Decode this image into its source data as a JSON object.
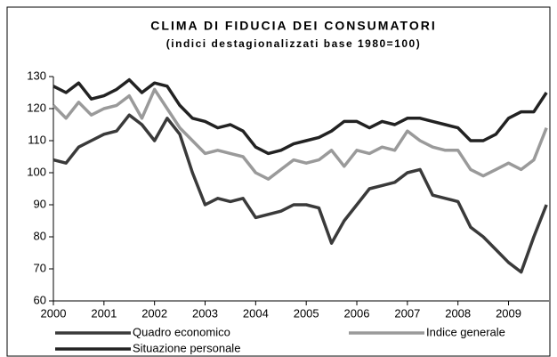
{
  "chart_data": {
    "type": "line",
    "title": "CLIMA DI FIDUCIA DEI CONSUMATORI",
    "subtitle": "(indici destagionalizzati base 1980=100)",
    "x": [
      2000,
      2000.25,
      2000.5,
      2000.75,
      2001,
      2001.25,
      2001.5,
      2001.75,
      2002,
      2002.25,
      2002.5,
      2002.75,
      2003,
      2003.25,
      2003.5,
      2003.75,
      2004,
      2004.25,
      2004.5,
      2004.75,
      2005,
      2005.25,
      2005.5,
      2005.75,
      2006,
      2006.25,
      2006.5,
      2006.75,
      2007,
      2007.25,
      2007.5,
      2007.75,
      2008,
      2008.25,
      2008.5,
      2008.75,
      2009,
      2009.25,
      2009.5,
      2009.75
    ],
    "series": [
      {
        "name": "Quadro economico",
        "color": "#3a3a3a",
        "values": [
          104,
          103,
          108,
          110,
          112,
          113,
          118,
          115,
          110,
          117,
          112,
          100,
          90,
          92,
          91,
          92,
          86,
          87,
          88,
          90,
          90,
          89,
          78,
          85,
          90,
          95,
          96,
          97,
          100,
          101,
          93,
          92,
          91,
          83,
          80,
          76,
          72,
          69,
          80,
          90
        ]
      },
      {
        "name": "Indice generale",
        "color": "#9a9a9a",
        "values": [
          121,
          117,
          122,
          118,
          120,
          121,
          124,
          117,
          126,
          120,
          114,
          110,
          106,
          107,
          106,
          105,
          100,
          98,
          101,
          104,
          103,
          104,
          107,
          102,
          107,
          106,
          108,
          107,
          113,
          110,
          108,
          107,
          107,
          101,
          99,
          101,
          103,
          101,
          104,
          114
        ]
      },
      {
        "name": "Situazione personale",
        "color": "#222222",
        "values": [
          127,
          125,
          128,
          123,
          124,
          126,
          129,
          125,
          128,
          127,
          121,
          117,
          116,
          114,
          115,
          113,
          108,
          106,
          107,
          109,
          110,
          111,
          113,
          116,
          116,
          114,
          116,
          115,
          117,
          117,
          116,
          115,
          114,
          110,
          110,
          112,
          117,
          119,
          119,
          125
        ]
      }
    ],
    "xlim": [
      2000,
      2009.8
    ],
    "xticks": [
      {
        "value": 2000,
        "label": "2000"
      },
      {
        "value": 2001,
        "label": "2001"
      },
      {
        "value": 2002,
        "label": "2002"
      },
      {
        "value": 2003,
        "label": "2003"
      },
      {
        "value": 2004,
        "label": "2004"
      },
      {
        "value": 2005,
        "label": "2005"
      },
      {
        "value": 2006,
        "label": "2006"
      },
      {
        "value": 2007,
        "label": "2007"
      },
      {
        "value": 2008,
        "label": "2008"
      },
      {
        "value": 2009,
        "label": "2009"
      }
    ],
    "ylim": [
      60,
      130
    ],
    "yticks": [
      60,
      70,
      80,
      90,
      100,
      110,
      120,
      130
    ],
    "grid": false
  }
}
